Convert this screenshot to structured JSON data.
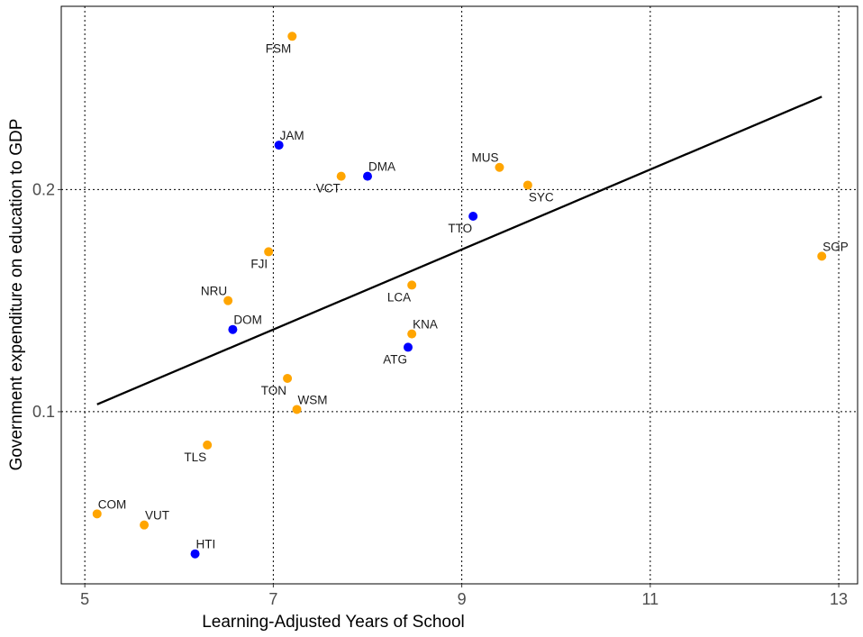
{
  "chart_data": {
    "type": "scatter",
    "xlabel": "Learning-Adjusted Years of School",
    "ylabel": "Government expenditure on education to GDP",
    "xlim": [
      4.75,
      13.2
    ],
    "ylim": [
      0.0225,
      0.2825
    ],
    "x_ticks": [
      5,
      7,
      9,
      11,
      13
    ],
    "x_tick_labels": [
      "5",
      "7",
      "9",
      "11",
      "13"
    ],
    "y_ticks": [
      0.1,
      0.2
    ],
    "y_tick_labels": [
      "0.1",
      "0.2"
    ],
    "grid": true,
    "legend": "none",
    "colors": {
      "orange": "#FFA500",
      "blue": "#0000FF",
      "fit_line": "#000000"
    },
    "points": [
      {
        "label": "FSM",
        "x": 7.2,
        "y": 0.269,
        "color": "orange",
        "label_pos": "below-left"
      },
      {
        "label": "JAM",
        "x": 7.06,
        "y": 0.22,
        "color": "blue",
        "label_pos": "above-right"
      },
      {
        "label": "DMA",
        "x": 8.0,
        "y": 0.206,
        "color": "blue",
        "label_pos": "above-right"
      },
      {
        "label": "VCT",
        "x": 7.72,
        "y": 0.206,
        "color": "orange",
        "label_pos": "below-left"
      },
      {
        "label": "MUS",
        "x": 9.4,
        "y": 0.21,
        "color": "orange",
        "label_pos": "above-left"
      },
      {
        "label": "SYC",
        "x": 9.7,
        "y": 0.202,
        "color": "orange",
        "label_pos": "below-right"
      },
      {
        "label": "TTO",
        "x": 9.12,
        "y": 0.188,
        "color": "blue",
        "label_pos": "below-left"
      },
      {
        "label": "SGP",
        "x": 12.82,
        "y": 0.17,
        "color": "orange",
        "label_pos": "above-right"
      },
      {
        "label": "FJI",
        "x": 6.95,
        "y": 0.172,
        "color": "orange",
        "label_pos": "below-left"
      },
      {
        "label": "LCA",
        "x": 8.47,
        "y": 0.157,
        "color": "orange",
        "label_pos": "below-left"
      },
      {
        "label": "NRU",
        "x": 6.52,
        "y": 0.15,
        "color": "orange",
        "label_pos": "above-left"
      },
      {
        "label": "DOM",
        "x": 6.57,
        "y": 0.137,
        "color": "blue",
        "label_pos": "above-right"
      },
      {
        "label": "KNA",
        "x": 8.47,
        "y": 0.135,
        "color": "orange",
        "label_pos": "above-right"
      },
      {
        "label": "ATG",
        "x": 8.43,
        "y": 0.129,
        "color": "blue",
        "label_pos": "below-left"
      },
      {
        "label": "TON",
        "x": 7.15,
        "y": 0.115,
        "color": "orange",
        "label_pos": "below-left"
      },
      {
        "label": "WSM",
        "x": 7.25,
        "y": 0.101,
        "color": "orange",
        "label_pos": "above-right"
      },
      {
        "label": "TLS",
        "x": 6.3,
        "y": 0.085,
        "color": "orange",
        "label_pos": "below-left"
      },
      {
        "label": "COM",
        "x": 5.13,
        "y": 0.054,
        "color": "orange",
        "label_pos": "above-right"
      },
      {
        "label": "VUT",
        "x": 5.63,
        "y": 0.049,
        "color": "orange",
        "label_pos": "above-right"
      },
      {
        "label": "HTI",
        "x": 6.17,
        "y": 0.036,
        "color": "blue",
        "label_pos": "above-right"
      }
    ],
    "fit_line": {
      "x": [
        5.13,
        12.82
      ],
      "y": [
        0.1033,
        0.2418
      ]
    }
  }
}
